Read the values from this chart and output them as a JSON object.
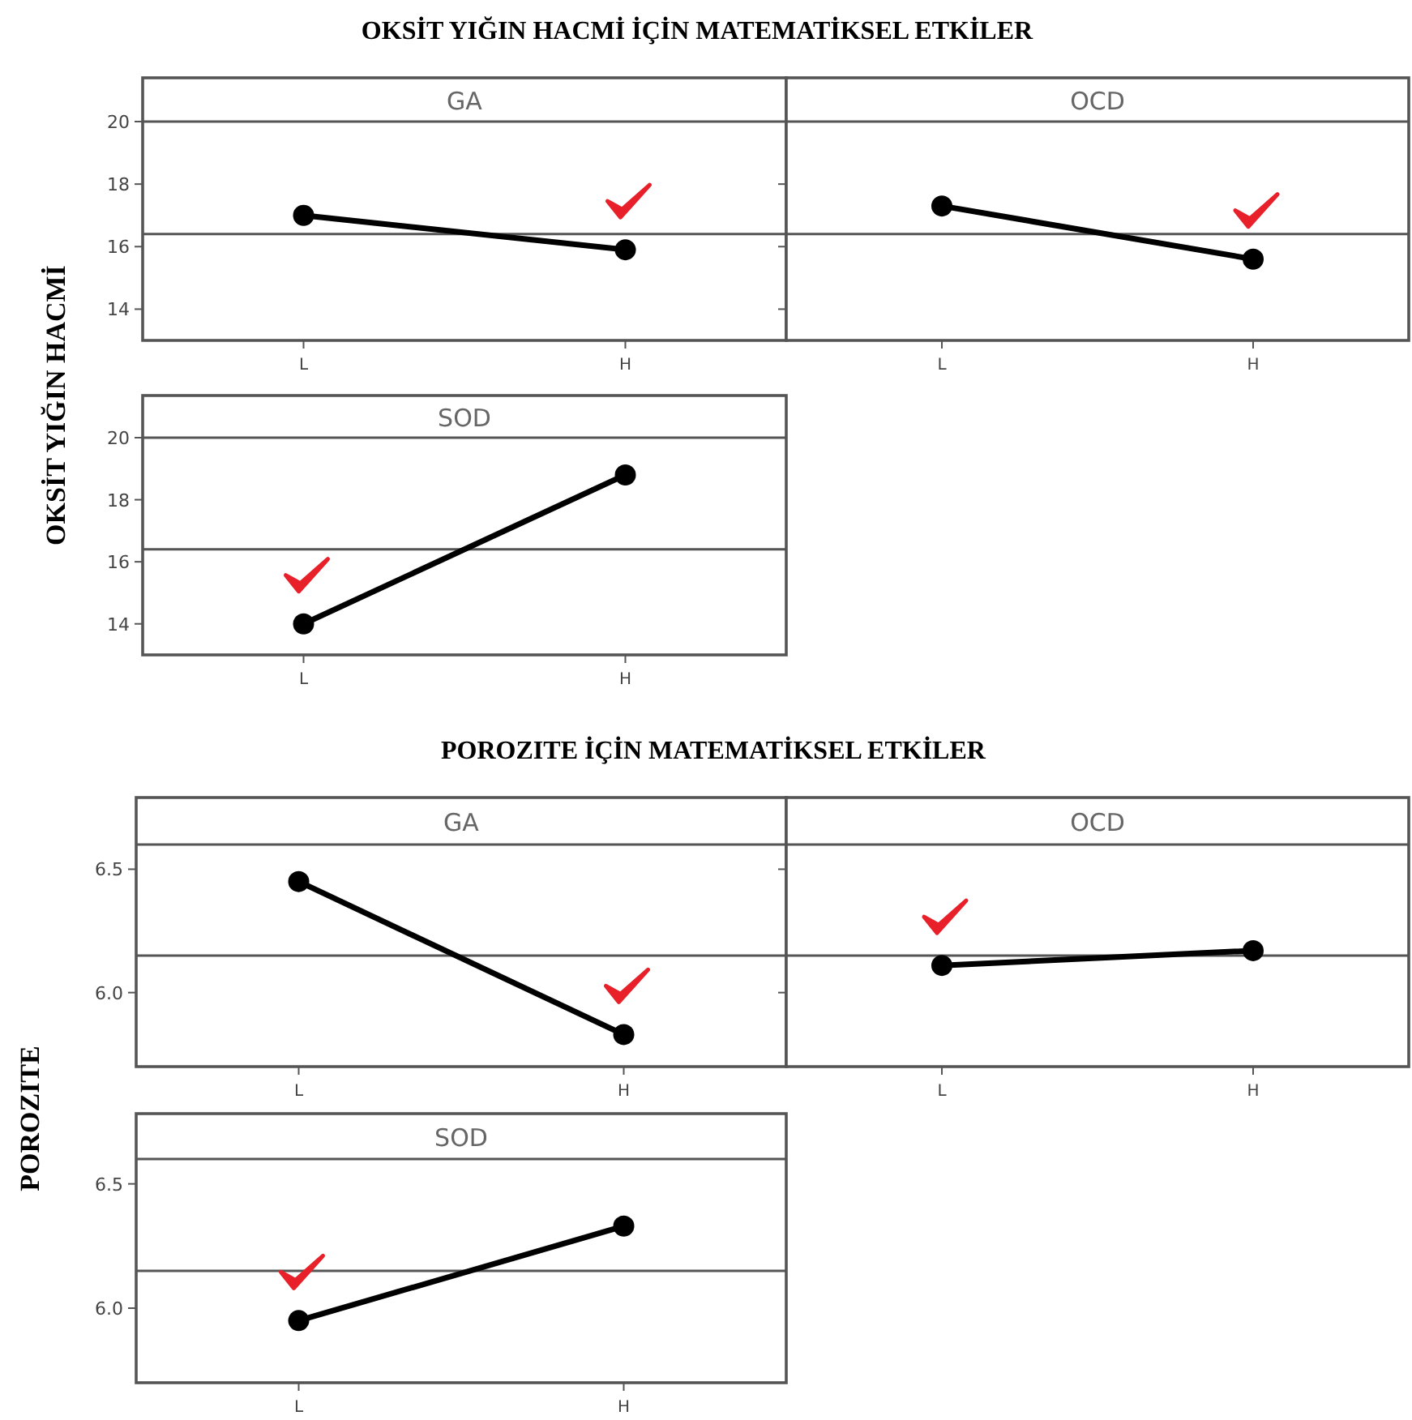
{
  "chart_data": [
    {
      "type": "line",
      "title": "OKSİT YIĞIN HACMİ İÇİN MATEMATİKSEL ETKİLER",
      "ylabel": "OKSİT YIĞIN HACMİ",
      "subtitle": "GA",
      "categories": [
        "L",
        "H"
      ],
      "values": [
        17.0,
        15.9
      ],
      "color": "#000000",
      "marker": "circle",
      "ylim": [
        13,
        20
      ],
      "yticks": [
        14,
        16,
        18,
        20
      ],
      "ref_lines": [
        {
          "axis": "y",
          "value": 16.4,
          "color": "#555555"
        }
      ]
    },
    {
      "type": "line",
      "subtitle": "OCD",
      "categories": [
        "L",
        "H"
      ],
      "values": [
        17.3,
        15.6
      ],
      "color": "#000000",
      "marker": "circle",
      "ylim": [
        13,
        20
      ],
      "yticks": [
        14,
        16,
        18,
        20
      ],
      "tick_labels": "x",
      "ref_lines": [
        {
          "axis": "y",
          "value": 16.4,
          "color": "#555555"
        }
      ]
    },
    {
      "type": "line",
      "subtitle": "SOD",
      "categories": [
        "L",
        "H"
      ],
      "values": [
        14.0,
        18.8
      ],
      "color": "#000000",
      "marker": "circle",
      "ylim": [
        13,
        20
      ],
      "yticks": [
        14,
        16,
        18,
        20
      ],
      "ref_lines": [
        {
          "axis": "y",
          "value": 16.4,
          "color": "#555555"
        }
      ]
    },
    {
      "type": "line",
      "title": "POROZITE İÇİN MATEMATİKSEL ETKİLER",
      "ylabel": "POROZITE",
      "subtitle": "GA",
      "categories": [
        "L",
        "H"
      ],
      "values": [
        6.45,
        5.83
      ],
      "color": "#000000",
      "marker": "circle",
      "ylim": [
        5.7,
        6.6
      ],
      "yticks": [
        {
          "value": 6,
          "label": "6.0"
        },
        6.5
      ],
      "ref_lines": [
        {
          "axis": "y",
          "value": 6.15,
          "color": "#555555"
        }
      ]
    },
    {
      "type": "line",
      "subtitle": "OCD",
      "categories": [
        "L",
        "H"
      ],
      "values": [
        6.11,
        6.17
      ],
      "color": "#000000",
      "marker": "circle",
      "ylim": [
        5.7,
        6.6
      ],
      "yticks": [
        6,
        6.5
      ],
      "tick_labels": "x",
      "ref_lines": [
        {
          "axis": "y",
          "value": 6.15,
          "color": "#555555"
        }
      ]
    },
    {
      "type": "line",
      "subtitle": "SOD",
      "categories": [
        "L",
        "H"
      ],
      "values": [
        5.95,
        6.33
      ],
      "color": "#000000",
      "marker": "circle",
      "ylim": [
        5.7,
        6.6
      ],
      "yticks": [
        {
          "value": 6,
          "label": "6.0"
        },
        6.5
      ],
      "ref_lines": [
        {
          "axis": "y",
          "value": 6.15,
          "color": "#555555"
        }
      ]
    }
  ]
}
